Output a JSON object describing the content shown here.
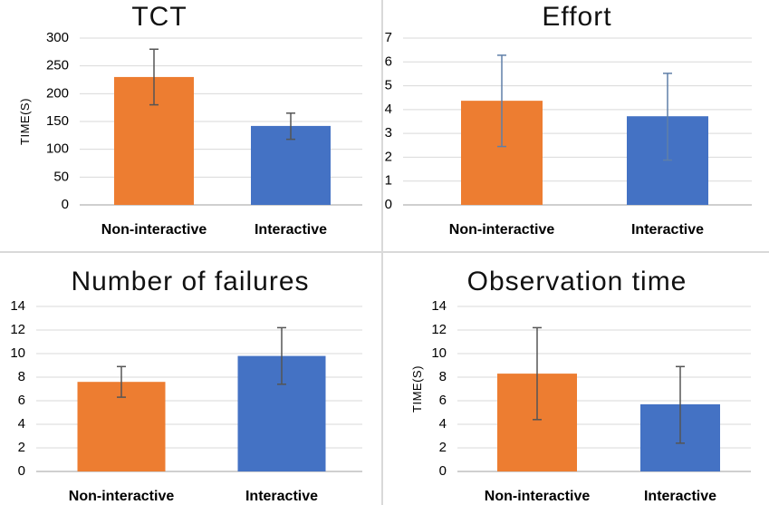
{
  "colors": {
    "orange": "#ed7d31",
    "blue": "#4472c4"
  },
  "chart_data": [
    {
      "type": "bar",
      "title": "TCT",
      "ylabel": "TIME(S)",
      "xlabel": "",
      "categories": [
        "Non-interactive",
        "Interactive"
      ],
      "values": [
        230,
        142
      ],
      "error_low": [
        180,
        118
      ],
      "error_high": [
        280,
        165
      ],
      "ylim": [
        0,
        300
      ],
      "yticks": [
        "0",
        "50",
        "100",
        "150",
        "200",
        "250",
        "300"
      ],
      "grid": true
    },
    {
      "type": "bar",
      "title": "Effort",
      "ylabel": "",
      "xlabel": "",
      "categories": [
        "Non-interactive",
        "Interactive"
      ],
      "values": [
        4.37,
        3.72
      ],
      "error_low": [
        2.45,
        1.88
      ],
      "error_high": [
        6.28,
        5.52
      ],
      "ylim": [
        0,
        7
      ],
      "yticks": [
        "0",
        "1",
        "2",
        "3",
        "4",
        "5",
        "6",
        "7"
      ],
      "grid": true
    },
    {
      "type": "bar",
      "title": "Number of failures",
      "ylabel": "",
      "xlabel": "",
      "categories": [
        "Non-interactive",
        "Interactive"
      ],
      "values": [
        7.6,
        9.8
      ],
      "error_low": [
        6.3,
        7.4
      ],
      "error_high": [
        8.9,
        12.2
      ],
      "ylim": [
        0,
        14
      ],
      "yticks": [
        "0",
        "2",
        "4",
        "6",
        "8",
        "10",
        "12",
        "14"
      ],
      "grid": true
    },
    {
      "type": "bar",
      "title": "Observation time",
      "ylabel": "TIME(S)",
      "xlabel": "",
      "categories": [
        "Non-interactive",
        "Interactive"
      ],
      "values": [
        8.3,
        5.7
      ],
      "error_low": [
        4.4,
        2.4
      ],
      "error_high": [
        12.2,
        8.9
      ],
      "ylim": [
        0,
        14
      ],
      "yticks": [
        "0",
        "2",
        "4",
        "6",
        "8",
        "10",
        "12",
        "14"
      ],
      "grid": true
    }
  ]
}
